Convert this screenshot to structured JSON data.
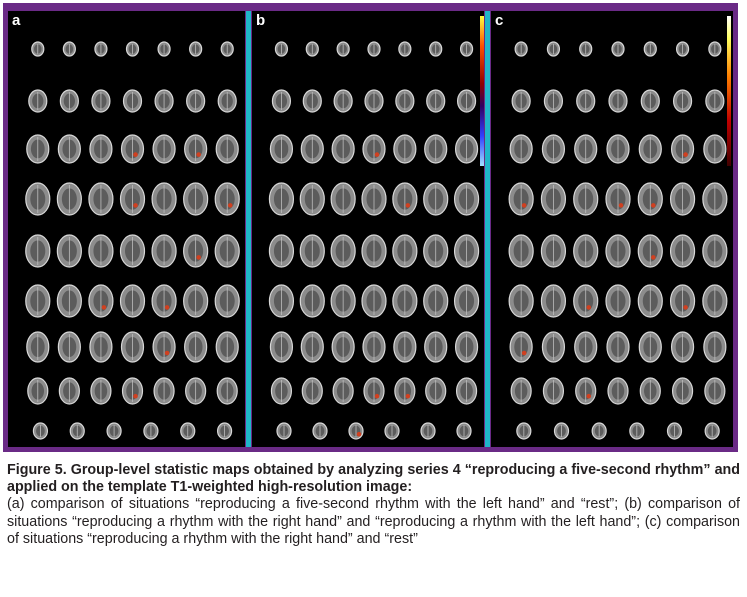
{
  "figure": {
    "panels": [
      {
        "letter": "a"
      },
      {
        "letter": "b"
      },
      {
        "letter": "c"
      }
    ],
    "colors": {
      "frame": "#6a2a86",
      "divider": "#1fb6c9",
      "activation": "#d04020"
    }
  },
  "caption": {
    "title": "Figure 5. Group-level statistic maps obtained by analyzing series 4 “reproducing a five-second rhythm” and applied on the template T1-weighted high-resolution image:",
    "body": "(a) comparison of situations “reproducing a five-second rhythm with the left hand” and “rest”; (b) comparison of situations “reproducing a rhythm with the right hand” and “reproducing a rhythm with the left hand”; (c) comparison of situations “reproducing a rhythm with the right hand” and “rest”"
  }
}
